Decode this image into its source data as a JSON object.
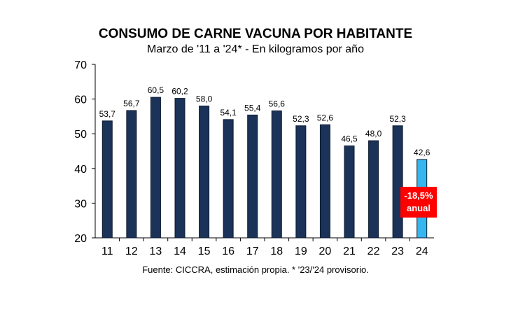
{
  "chart_data": {
    "type": "bar",
    "title": "CONSUMO DE CARNE VACUNA POR HABITANTE",
    "subtitle": "Marzo de '11 a '24* - En kilogramos por año",
    "categories": [
      "11",
      "12",
      "13",
      "14",
      "15",
      "16",
      "17",
      "18",
      "19",
      "20",
      "21",
      "22",
      "23",
      "24"
    ],
    "values": [
      53.7,
      56.7,
      60.5,
      60.2,
      58.0,
      54.1,
      55.4,
      56.6,
      52.3,
      52.6,
      46.5,
      48.0,
      52.3,
      42.6
    ],
    "value_labels": [
      "53,7",
      "56,7",
      "60,5",
      "60,2",
      "58,0",
      "54,1",
      "55,4",
      "56,6",
      "52,3",
      "52,6",
      "46,5",
      "48,0",
      "52,3",
      "42,6"
    ],
    "ylim": [
      20,
      70
    ],
    "yticks": [
      20,
      30,
      40,
      50,
      60,
      70
    ],
    "xlabel": "",
    "ylabel": "",
    "grid": false,
    "colors": {
      "bar": "#1b3358",
      "highlight": "#35b6ee"
    },
    "highlight_index": 13,
    "annotation": {
      "line1": "-18,5%",
      "line2": "anual",
      "color": "#ff0000"
    }
  },
  "footer": {
    "source": "Fuente: CICCRA, estimación propia. * '23/'24 provisorio."
  }
}
